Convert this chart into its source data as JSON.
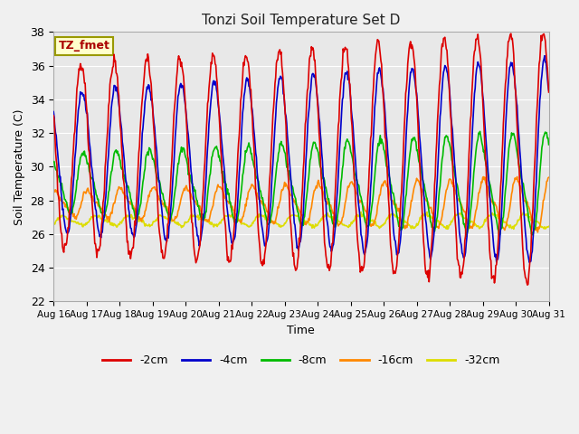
{
  "title": "Tonzi Soil Temperature Set D",
  "xlabel": "Time",
  "ylabel": "Soil Temperature (C)",
  "ylim": [
    22,
    38
  ],
  "xtick_labels": [
    "Aug 16",
    "Aug 17",
    "Aug 18",
    "Aug 19",
    "Aug 20",
    "Aug 21",
    "Aug 22",
    "Aug 23",
    "Aug 24",
    "Aug 25",
    "Aug 26",
    "Aug 27",
    "Aug 28",
    "Aug 29",
    "Aug 30",
    "Aug 31"
  ],
  "ytick_values": [
    22,
    24,
    26,
    28,
    30,
    32,
    34,
    36,
    38
  ],
  "legend_labels": [
    "-2cm",
    "-4cm",
    "-8cm",
    "-16cm",
    "-32cm"
  ],
  "legend_colors": [
    "#dd0000",
    "#0000cc",
    "#00bb00",
    "#ff8800",
    "#dddd00"
  ],
  "line_widths": [
    1.2,
    1.2,
    1.2,
    1.2,
    1.2
  ],
  "annotation_text": "TZ_fmet",
  "annotation_color": "#aa0000",
  "annotation_bg": "#ffffcc",
  "annotation_border": "#999900",
  "axes_bg_color": "#e8e8e8",
  "fig_bg_color": "#f0f0f0",
  "grid_color": "#ffffff",
  "days": 15,
  "hours_per_day": 24,
  "n_points": 721
}
